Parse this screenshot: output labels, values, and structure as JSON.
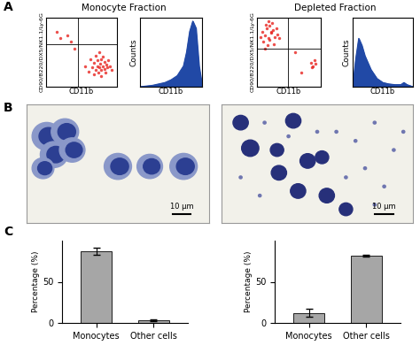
{
  "sections": [
    "Monocyte Fraction",
    "Depleted Fraction"
  ],
  "panel_labels": [
    "A",
    "B",
    "C"
  ],
  "micrographs": [
    {
      "scale_bar": "10 µm"
    },
    {
      "scale_bar": "10 µm"
    }
  ],
  "chart_data": [
    {
      "type": "scatter",
      "x_label": "CD11b",
      "y_label": "CD90/B220/DX5/NK1.1/Ly-6G",
      "x": [
        55,
        60,
        62,
        65,
        67,
        68,
        70,
        70,
        72,
        73,
        74,
        75,
        75,
        76,
        77,
        78,
        78,
        80,
        80,
        82,
        83,
        84,
        85,
        86,
        88,
        90,
        92,
        20,
        30,
        35,
        15,
        40
      ],
      "y": [
        30,
        22,
        40,
        28,
        35,
        18,
        25,
        45,
        30,
        38,
        20,
        28,
        50,
        33,
        24,
        40,
        15,
        30,
        44,
        26,
        36,
        20,
        32,
        28,
        38,
        30,
        25,
        70,
        75,
        65,
        80,
        55
      ],
      "gates": {
        "x": 45,
        "y": 62
      },
      "xlim": [
        0,
        100
      ],
      "ylim": [
        0,
        100
      ],
      "color": "#e8231e",
      "tick_labels": false
    },
    {
      "type": "area",
      "x_label": "CD11b",
      "y_label": "Counts",
      "x": [
        0,
        10,
        20,
        30,
        40,
        50,
        60,
        70,
        75,
        80,
        85,
        90,
        95,
        100
      ],
      "values": [
        0,
        1,
        2,
        4,
        6,
        10,
        16,
        30,
        50,
        80,
        95,
        85,
        30,
        2
      ],
      "xlim": [
        0,
        100
      ],
      "ylim": [
        0,
        100
      ],
      "color": "#2149a6",
      "tick_labels": false
    },
    {
      "type": "scatter",
      "x_label": "CD11b",
      "y_label": "CD90/B220/DX5/NK1.1/Ly-6G",
      "x": [
        8,
        12,
        15,
        18,
        20,
        22,
        25,
        10,
        14,
        28,
        30,
        16,
        20,
        24,
        32,
        35,
        12,
        18,
        26,
        22,
        5,
        85,
        88,
        90,
        86,
        92,
        60,
        70
      ],
      "y": [
        80,
        75,
        85,
        70,
        88,
        78,
        82,
        65,
        90,
        72,
        85,
        60,
        68,
        92,
        76,
        70,
        55,
        95,
        62,
        80,
        72,
        35,
        30,
        38,
        28,
        33,
        50,
        20
      ],
      "gates": {
        "x": 48,
        "y": 55
      },
      "xlim": [
        0,
        100
      ],
      "ylim": [
        0,
        100
      ],
      "color": "#e8231e",
      "tick_labels": false
    },
    {
      "type": "area",
      "x_label": "CD11b",
      "y_label": "Counts",
      "x": [
        0,
        5,
        10,
        15,
        20,
        25,
        30,
        40,
        50,
        60,
        70,
        80,
        85,
        90,
        100
      ],
      "values": [
        0,
        40,
        70,
        60,
        45,
        35,
        25,
        12,
        6,
        4,
        3,
        3,
        6,
        3,
        0
      ],
      "xlim": [
        0,
        100
      ],
      "ylim": [
        0,
        100
      ],
      "color": "#2149a6",
      "tick_labels": false
    },
    {
      "type": "bar",
      "y_label": "Percentage (%)",
      "categories": [
        "Monocytes",
        "Other cells"
      ],
      "values": [
        87,
        3
      ],
      "errors": [
        4,
        1
      ],
      "color": "#a6a6a6",
      "ylim": [
        0,
        100
      ],
      "yticks": [
        0,
        50
      ]
    },
    {
      "type": "bar",
      "y_label": "Percentage (%)",
      "categories": [
        "Monocytes",
        "Other cells"
      ],
      "values": [
        12,
        82
      ],
      "errors": [
        5,
        1
      ],
      "color": "#a6a6a6",
      "ylim": [
        0,
        100
      ],
      "yticks": [
        0,
        50
      ]
    }
  ]
}
